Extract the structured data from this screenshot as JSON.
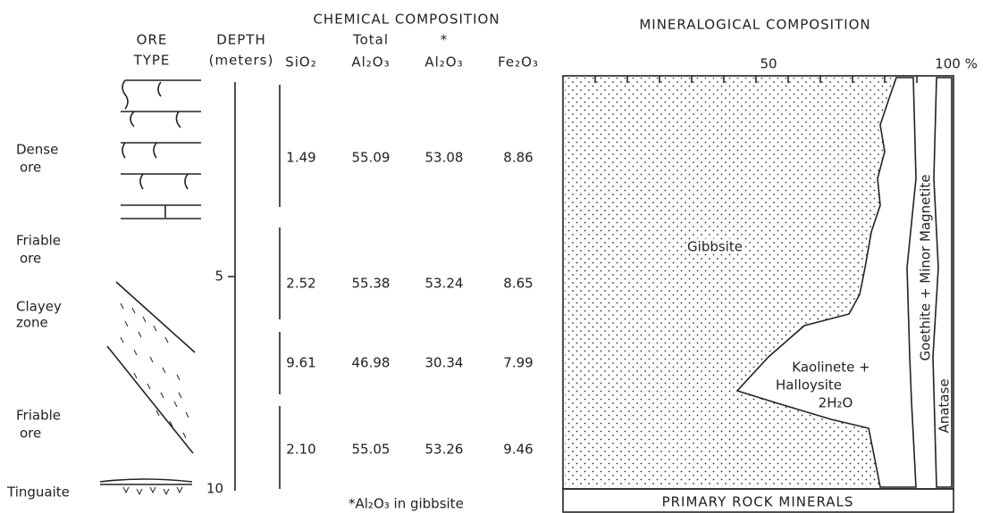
{
  "ore_column": {
    "header": [
      "ORE",
      "TYPE"
    ],
    "types": [
      [
        "Dense",
        "ore"
      ],
      [
        "Friable",
        "ore"
      ],
      [
        "Clayey",
        "zone"
      ],
      [
        "Friable",
        "ore"
      ],
      [
        "Tinguaite"
      ]
    ]
  },
  "depth": {
    "header": [
      "DEPTH",
      "(meters)"
    ],
    "ticks": [
      "5",
      "10"
    ]
  },
  "chemical": {
    "title": "CHEMICAL COMPOSITION",
    "columns": [
      [
        "SiO₂"
      ],
      [
        "Total",
        "Al₂O₃"
      ],
      [
        "*",
        "Al₂O₃"
      ],
      [
        "Fe₂O₃"
      ]
    ],
    "rows": [
      [
        "1.49",
        "55.09",
        "53.08",
        "8.86"
      ],
      [
        "2.52",
        "55.38",
        "53.24",
        "8.65"
      ],
      [
        "9.61",
        "46.98",
        "30.34",
        "7.99"
      ],
      [
        "2.10",
        "55.05",
        "53.26",
        "9.46"
      ]
    ],
    "footnote": "*Al₂O₃ in gibbsite"
  },
  "mineralogical": {
    "title": "MINERALOGICAL COMPOSITION",
    "scale_labels": [
      "50",
      "100 %"
    ],
    "gibbsite": "Gibbsite",
    "kaolinite": [
      "Kaolinete +",
      "Halloysite",
      "2H₂O"
    ],
    "goethite": "Goethite + Minor Magnetite",
    "anatase": "Anatase",
    "primary": "PRIMARY ROCK MINERALS"
  }
}
